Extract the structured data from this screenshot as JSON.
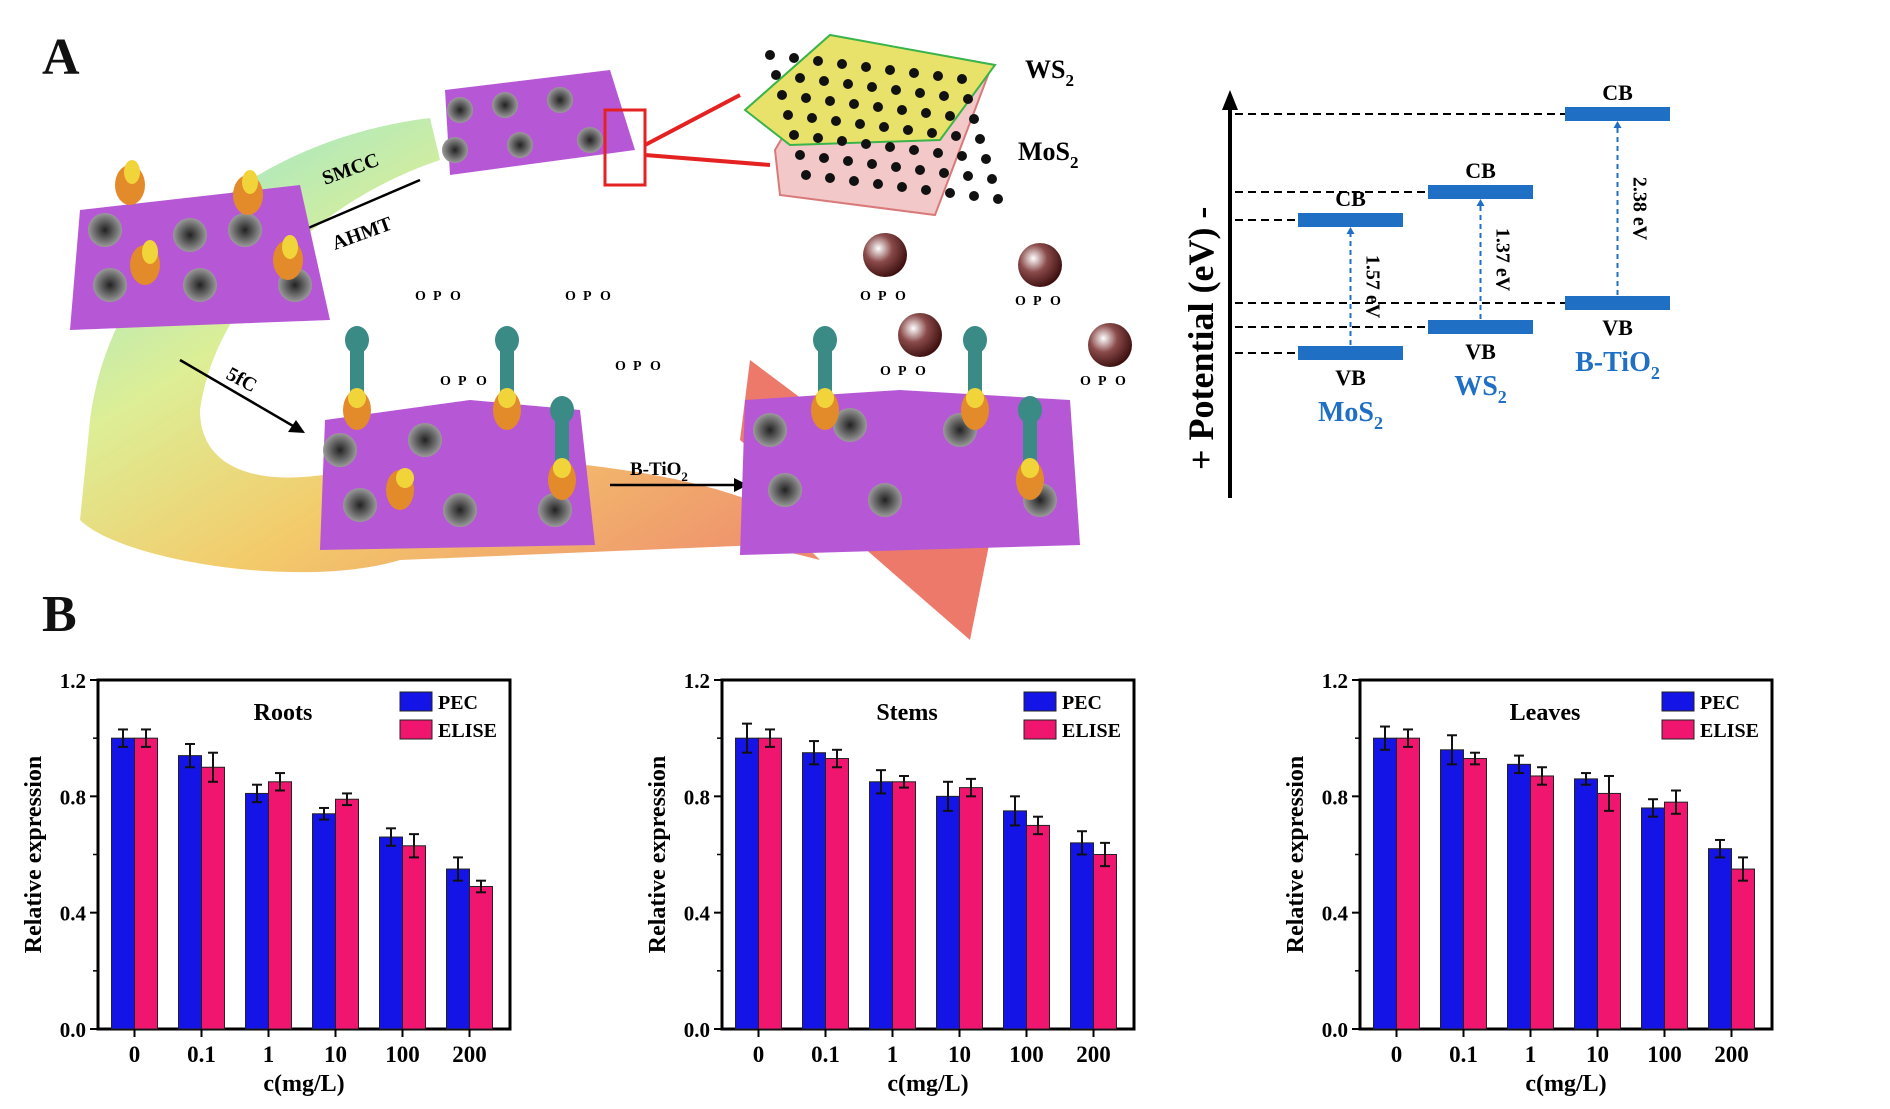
{
  "figure": {
    "panel_a_label": "A",
    "panel_b_label": "B"
  },
  "schematic": {
    "step_labels": {
      "smcc": "SMCC",
      "ahmt": "AHMT",
      "fivefc": "5fC",
      "btio2": "B-TiO",
      "btio2_sub": "2"
    },
    "heterostructure": {
      "top_layer": "WS",
      "top_layer_sub": "2",
      "bottom_layer": "MoS",
      "bottom_layer_sub": "2"
    },
    "phosphate": {
      "o": "O",
      "p": "P",
      "minus": "-"
    },
    "colors": {
      "sheet": "#b04fd0",
      "nanosphere": "#6a6a6a",
      "antibody": "#e38a2a",
      "tip": "#f0d43a",
      "receptor": "#3a8a86",
      "btio2_ball": "#5a1f1f",
      "zoom_box": "#e52222"
    }
  },
  "band_diagram": {
    "axis_label": "+ Potential (eV) -",
    "materials": [
      {
        "name": "MoS",
        "sub": "2",
        "cb": "CB",
        "vb": "VB",
        "gap": "1.57 eV"
      },
      {
        "name": "WS",
        "sub": "2",
        "cb": "CB",
        "vb": "VB",
        "gap": "1.37 eV"
      },
      {
        "name": "B-TiO",
        "sub": "2",
        "cb": "CB",
        "vb": "VB",
        "gap": "2.38 eV"
      }
    ],
    "colors": {
      "band": "#1f6fc4",
      "label": "#1f6fc4"
    }
  },
  "chart_data": [
    {
      "type": "bar",
      "title": "Roots",
      "xlabel": "c(mg/L)",
      "ylabel": "Relative expression",
      "categories": [
        "0",
        "0.1",
        "1",
        "10",
        "100",
        "200"
      ],
      "ylim": [
        0,
        1.2
      ],
      "yticks": [
        "0.0",
        "0.4",
        "0.8",
        "1.2"
      ],
      "legend_position": "top-right",
      "series": [
        {
          "name": "PEC",
          "color": "#1414e6",
          "values": [
            1.0,
            0.94,
            0.81,
            0.74,
            0.66,
            0.55
          ],
          "errors": [
            0.03,
            0.04,
            0.03,
            0.02,
            0.03,
            0.04
          ]
        },
        {
          "name": "ELISE",
          "color": "#f0156e",
          "values": [
            1.0,
            0.9,
            0.85,
            0.79,
            0.63,
            0.49
          ],
          "errors": [
            0.03,
            0.05,
            0.03,
            0.02,
            0.04,
            0.02
          ]
        }
      ]
    },
    {
      "type": "bar",
      "title": "Stems",
      "xlabel": "c(mg/L)",
      "ylabel": "Relative expression",
      "categories": [
        "0",
        "0.1",
        "1",
        "10",
        "100",
        "200"
      ],
      "ylim": [
        0,
        1.2
      ],
      "yticks": [
        "0.0",
        "0.4",
        "0.8",
        "1.2"
      ],
      "legend_position": "top-right",
      "series": [
        {
          "name": "PEC",
          "color": "#1414e6",
          "values": [
            1.0,
            0.95,
            0.85,
            0.8,
            0.75,
            0.64
          ],
          "errors": [
            0.05,
            0.04,
            0.04,
            0.05,
            0.05,
            0.04
          ]
        },
        {
          "name": "ELISE",
          "color": "#f0156e",
          "values": [
            1.0,
            0.93,
            0.85,
            0.83,
            0.7,
            0.6
          ],
          "errors": [
            0.03,
            0.03,
            0.02,
            0.03,
            0.03,
            0.04
          ]
        }
      ]
    },
    {
      "type": "bar",
      "title": "Leaves",
      "xlabel": "c(mg/L)",
      "ylabel": "Relative expression",
      "categories": [
        "0",
        "0.1",
        "1",
        "10",
        "100",
        "200"
      ],
      "ylim": [
        0,
        1.2
      ],
      "yticks": [
        "0.0",
        "0.4",
        "0.8",
        "1.2"
      ],
      "legend_position": "top-right",
      "series": [
        {
          "name": "PEC",
          "color": "#1414e6",
          "values": [
            1.0,
            0.96,
            0.91,
            0.86,
            0.76,
            0.62
          ],
          "errors": [
            0.04,
            0.05,
            0.03,
            0.02,
            0.03,
            0.03
          ]
        },
        {
          "name": "ELISE",
          "color": "#f0156e",
          "values": [
            1.0,
            0.93,
            0.87,
            0.81,
            0.78,
            0.55
          ],
          "errors": [
            0.03,
            0.02,
            0.03,
            0.06,
            0.04,
            0.04
          ]
        }
      ]
    }
  ]
}
